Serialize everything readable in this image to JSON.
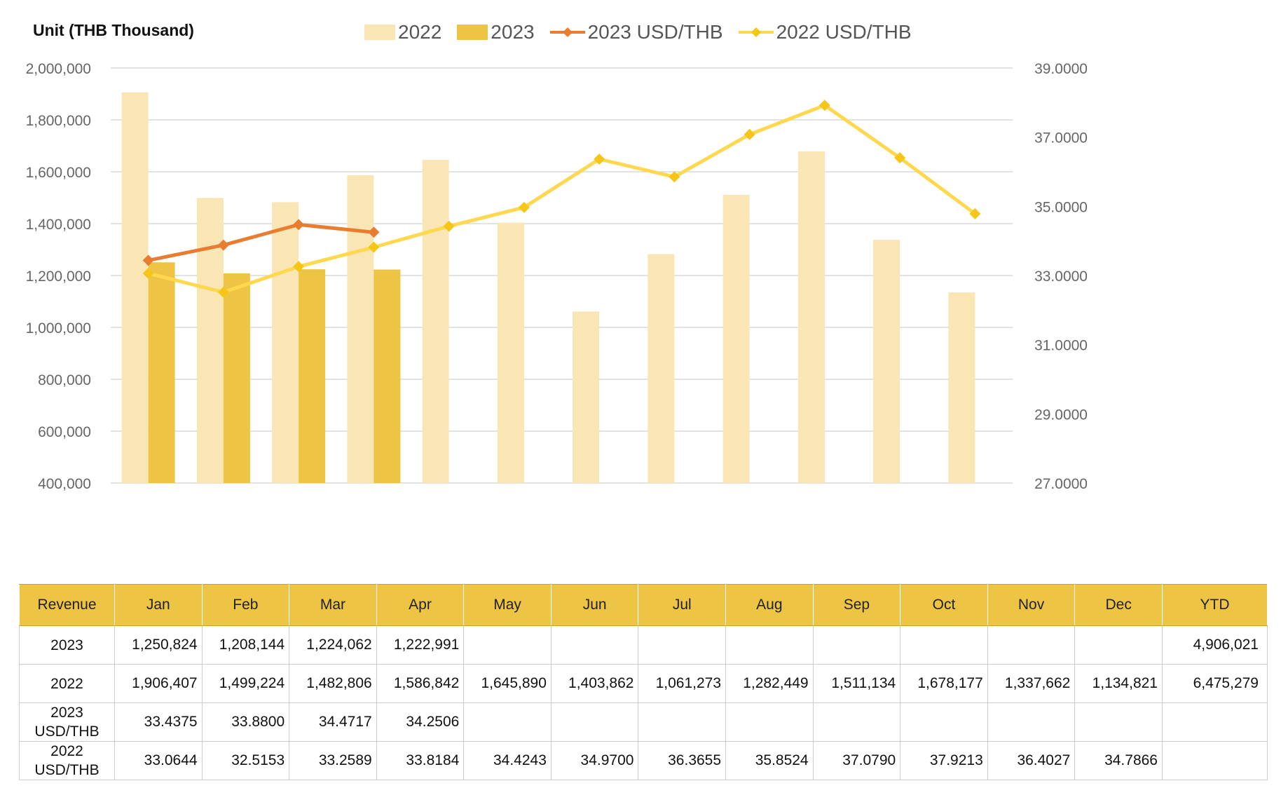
{
  "chart_data": {
    "type": "bar",
    "unit_label": "Unit (THB  Thousand)",
    "categories": [
      "Jan",
      "Feb",
      "Mar",
      "Apr",
      "May",
      "Jun",
      "Jul",
      "Aug",
      "Sep",
      "Oct",
      "Nov",
      "Dec"
    ],
    "series": [
      {
        "name": "2022",
        "kind": "bar",
        "axis": "left",
        "color": "#FAE5B4",
        "values": [
          1906407,
          1499224,
          1482806,
          1586842,
          1645890,
          1403862,
          1061273,
          1282449,
          1511134,
          1678177,
          1337662,
          1134821
        ]
      },
      {
        "name": "2023",
        "kind": "bar",
        "axis": "left",
        "color": "#EDC443",
        "values": [
          1250824,
          1208144,
          1224062,
          1222991,
          null,
          null,
          null,
          null,
          null,
          null,
          null,
          null
        ]
      },
      {
        "name": "2023 USD/THB",
        "kind": "line",
        "axis": "right",
        "color": "#E87D32",
        "values": [
          33.4375,
          33.88,
          34.4717,
          34.2506,
          null,
          null,
          null,
          null,
          null,
          null,
          null,
          null
        ]
      },
      {
        "name": "2022 USD/THB",
        "kind": "line",
        "axis": "right",
        "color": "#FFD84F",
        "values": [
          33.0644,
          32.5153,
          33.2589,
          33.8184,
          34.4243,
          34.97,
          36.3655,
          35.8524,
          37.079,
          37.9213,
          36.4027,
          34.7866
        ]
      }
    ],
    "ylim_left": [
      400000,
      2000000
    ],
    "yticks_left": [
      "2,000,000",
      "1,800,000",
      "1,600,000",
      "1,400,000",
      "1,200,000",
      "1,000,000",
      "800,000",
      "600,000",
      "400,000"
    ],
    "ylim_right": [
      27,
      39
    ],
    "yticks_right": [
      "39.0000",
      "37.0000",
      "35.0000",
      "33.0000",
      "31.0000",
      "29.0000",
      "27.0000"
    ],
    "grid": true,
    "legend_position": "top-center"
  },
  "table": {
    "header": [
      "Revenue",
      "Jan",
      "Feb",
      "Mar",
      "Apr",
      "May",
      "Jun",
      "Jul",
      "Aug",
      "Sep",
      "Oct",
      "Nov",
      "Dec",
      "YTD"
    ],
    "rows": [
      [
        "2023",
        "1,250,824",
        "1,208,144",
        "1,224,062",
        "1,222,991",
        "",
        "",
        "",
        "",
        "",
        "",
        "",
        "",
        "4,906,021"
      ],
      [
        "2022",
        "1,906,407",
        "1,499,224",
        "1,482,806",
        "1,586,842",
        "1,645,890",
        "1,403,862",
        "1,061,273",
        "1,282,449",
        "1,511,134",
        "1,678,177",
        "1,337,662",
        "1,134,821",
        "6,475,279"
      ],
      [
        "2023 USD/THB",
        "33.4375",
        "33.8800",
        "34.4717",
        "34.2506",
        "",
        "",
        "",
        "",
        "",
        "",
        "",
        "",
        ""
      ],
      [
        "2022 USD/THB",
        "33.0644",
        "32.5153",
        "33.2589",
        "33.8184",
        "34.4243",
        "34.9700",
        "36.3655",
        "35.8524",
        "37.0790",
        "37.9213",
        "36.4027",
        "34.7866",
        ""
      ]
    ]
  }
}
